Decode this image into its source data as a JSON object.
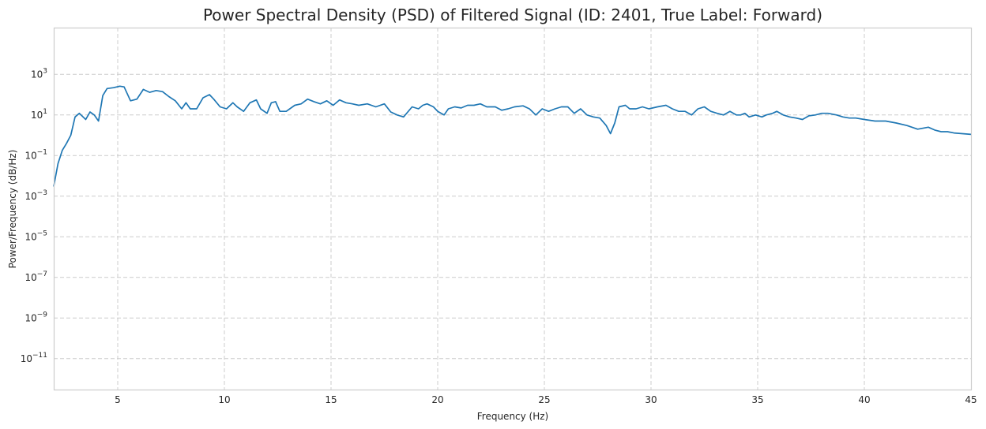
{
  "chart_data": {
    "type": "line",
    "title": "Power Spectral Density (PSD) of Filtered Signal (ID: 2401, True Label: Forward)",
    "xlabel": "Frequency (Hz)",
    "ylabel": "Power/Frequency (dB/Hz)",
    "x_scale": "linear",
    "y_scale": "log",
    "xlim": [
      2,
      45
    ],
    "ylim": [
      3e-13,
      200000
    ],
    "grid": true,
    "x_ticks": [
      5,
      10,
      15,
      20,
      25,
      30,
      35,
      40,
      45
    ],
    "x_tick_labels": [
      "5",
      "10",
      "15",
      "20",
      "25",
      "30",
      "35",
      "40",
      "45"
    ],
    "y_tick_exponents": [
      3,
      1,
      -1,
      -3,
      -5,
      -7,
      -9,
      -11
    ],
    "y_tick_base": "10",
    "series": [
      {
        "color": "#1f77b4",
        "x": [
          2.0,
          2.2,
          2.4,
          2.6,
          2.8,
          3.0,
          3.2,
          3.5,
          3.7,
          3.9,
          4.1,
          4.3,
          4.5,
          4.8,
          5.1,
          5.3,
          5.6,
          5.9,
          6.2,
          6.5,
          6.8,
          7.1,
          7.4,
          7.7,
          8.0,
          8.2,
          8.4,
          8.7,
          9.0,
          9.3,
          9.5,
          9.8,
          10.1,
          10.4,
          10.6,
          10.9,
          11.2,
          11.5,
          11.7,
          12.0,
          12.2,
          12.4,
          12.6,
          12.9,
          13.3,
          13.6,
          13.9,
          14.2,
          14.5,
          14.8,
          15.1,
          15.4,
          15.7,
          16.0,
          16.3,
          16.7,
          17.1,
          17.5,
          17.8,
          18.1,
          18.4,
          18.8,
          19.1,
          19.3,
          19.5,
          19.8,
          20.0,
          20.3,
          20.5,
          20.8,
          21.1,
          21.4,
          21.7,
          22.0,
          22.3,
          22.7,
          23.0,
          23.3,
          23.6,
          24.0,
          24.3,
          24.6,
          24.9,
          25.2,
          25.5,
          25.8,
          26.1,
          26.4,
          26.7,
          27.0,
          27.3,
          27.6,
          27.9,
          28.1,
          28.3,
          28.5,
          28.8,
          29.0,
          29.3,
          29.6,
          29.9,
          30.3,
          30.7,
          31.0,
          31.3,
          31.6,
          31.9,
          32.2,
          32.5,
          32.8,
          33.1,
          33.4,
          33.7,
          34.0,
          34.2,
          34.4,
          34.6,
          34.9,
          35.2,
          35.4,
          35.7,
          35.9,
          36.2,
          36.5,
          36.8,
          37.1,
          37.4,
          37.7,
          38.0,
          38.3,
          38.7,
          39.0,
          39.3,
          39.6,
          40.0,
          40.5,
          41.0,
          41.5,
          42.0,
          42.5,
          43.0,
          43.3,
          43.6,
          43.9,
          44.2,
          44.6,
          45.0
        ],
        "y": [
          0.003,
          0.04,
          0.18,
          0.4,
          1.0,
          8,
          12,
          6,
          14,
          10,
          5,
          90,
          200,
          220,
          260,
          240,
          50,
          60,
          180,
          130,
          160,
          140,
          80,
          50,
          20,
          40,
          20,
          20,
          70,
          100,
          60,
          25,
          20,
          40,
          25,
          15,
          40,
          55,
          20,
          12,
          40,
          45,
          15,
          15,
          30,
          35,
          60,
          45,
          35,
          50,
          30,
          55,
          40,
          35,
          30,
          35,
          25,
          35,
          14,
          10,
          8,
          25,
          20,
          30,
          35,
          25,
          15,
          10,
          20,
          25,
          22,
          30,
          30,
          35,
          25,
          25,
          17,
          20,
          25,
          28,
          20,
          10,
          20,
          15,
          20,
          25,
          25,
          12,
          20,
          10,
          8,
          7,
          3,
          1.2,
          4,
          25,
          30,
          20,
          20,
          25,
          20,
          25,
          30,
          20,
          15,
          15,
          10,
          20,
          25,
          15,
          12,
          10,
          15,
          10,
          10,
          12,
          8,
          10,
          8,
          10,
          12,
          15,
          10,
          8,
          7,
          6,
          9,
          10,
          12,
          12,
          10,
          8,
          7,
          7,
          6,
          5,
          5,
          4,
          3,
          2,
          2.5,
          1.8,
          1.5,
          1.5,
          1.3,
          1.2,
          1.1
        ]
      }
    ]
  }
}
